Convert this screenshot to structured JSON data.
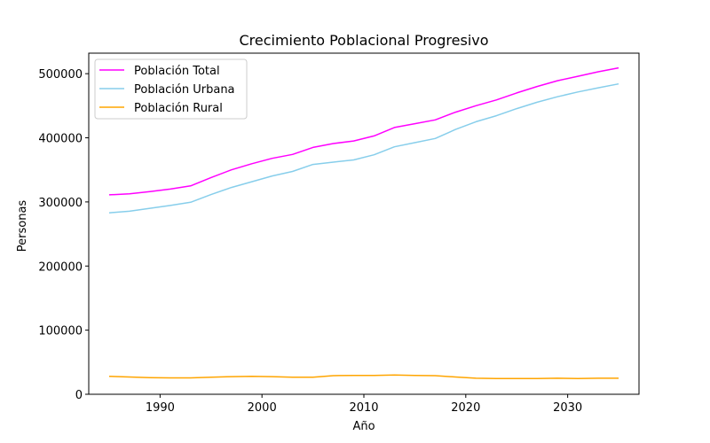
{
  "chart_data": {
    "type": "line",
    "title": "Crecimiento Poblacional Progresivo",
    "xlabel": "Año",
    "ylabel": "Personas",
    "xlim": [
      1983,
      2037
    ],
    "ylim": [
      0,
      532000
    ],
    "xticks": [
      1990,
      2000,
      2010,
      2020,
      2030
    ],
    "yticks": [
      0,
      100000,
      200000,
      300000,
      400000,
      500000
    ],
    "grid": false,
    "legend_position": "top-left",
    "x": [
      1985,
      1987,
      1989,
      1991,
      1993,
      1995,
      1997,
      1999,
      2001,
      2003,
      2005,
      2007,
      2009,
      2011,
      2013,
      2015,
      2017,
      2019,
      2021,
      2023,
      2025,
      2027,
      2029,
      2031,
      2033,
      2035
    ],
    "series": [
      {
        "name": "Población Total",
        "color": "#ff00ff",
        "values": [
          311000,
          312500,
          316000,
          320000,
          325000,
          338000,
          350000,
          359500,
          368000,
          374000,
          385000,
          391000,
          395000,
          403000,
          416000,
          422000,
          428000,
          440000,
          450000,
          459000,
          470000,
          480000,
          489000,
          496000,
          503000,
          509000
        ]
      },
      {
        "name": "Población Urbana",
        "color": "#87ceeb",
        "values": [
          283000,
          285500,
          290000,
          294500,
          299500,
          311500,
          322500,
          331500,
          340500,
          347500,
          358500,
          362000,
          365500,
          373500,
          386000,
          392500,
          399000,
          413000,
          425000,
          434500,
          445500,
          455500,
          464000,
          471500,
          478000,
          484000
        ]
      },
      {
        "name": "Población Rural",
        "color": "#ffa500",
        "values": [
          28000,
          27000,
          26000,
          25500,
          25500,
          26500,
          27500,
          28000,
          27500,
          26500,
          26500,
          29000,
          29500,
          29500,
          30000,
          29500,
          29000,
          27000,
          25000,
          24500,
          24500,
          24500,
          25000,
          24500,
          25000,
          25000
        ]
      }
    ]
  }
}
